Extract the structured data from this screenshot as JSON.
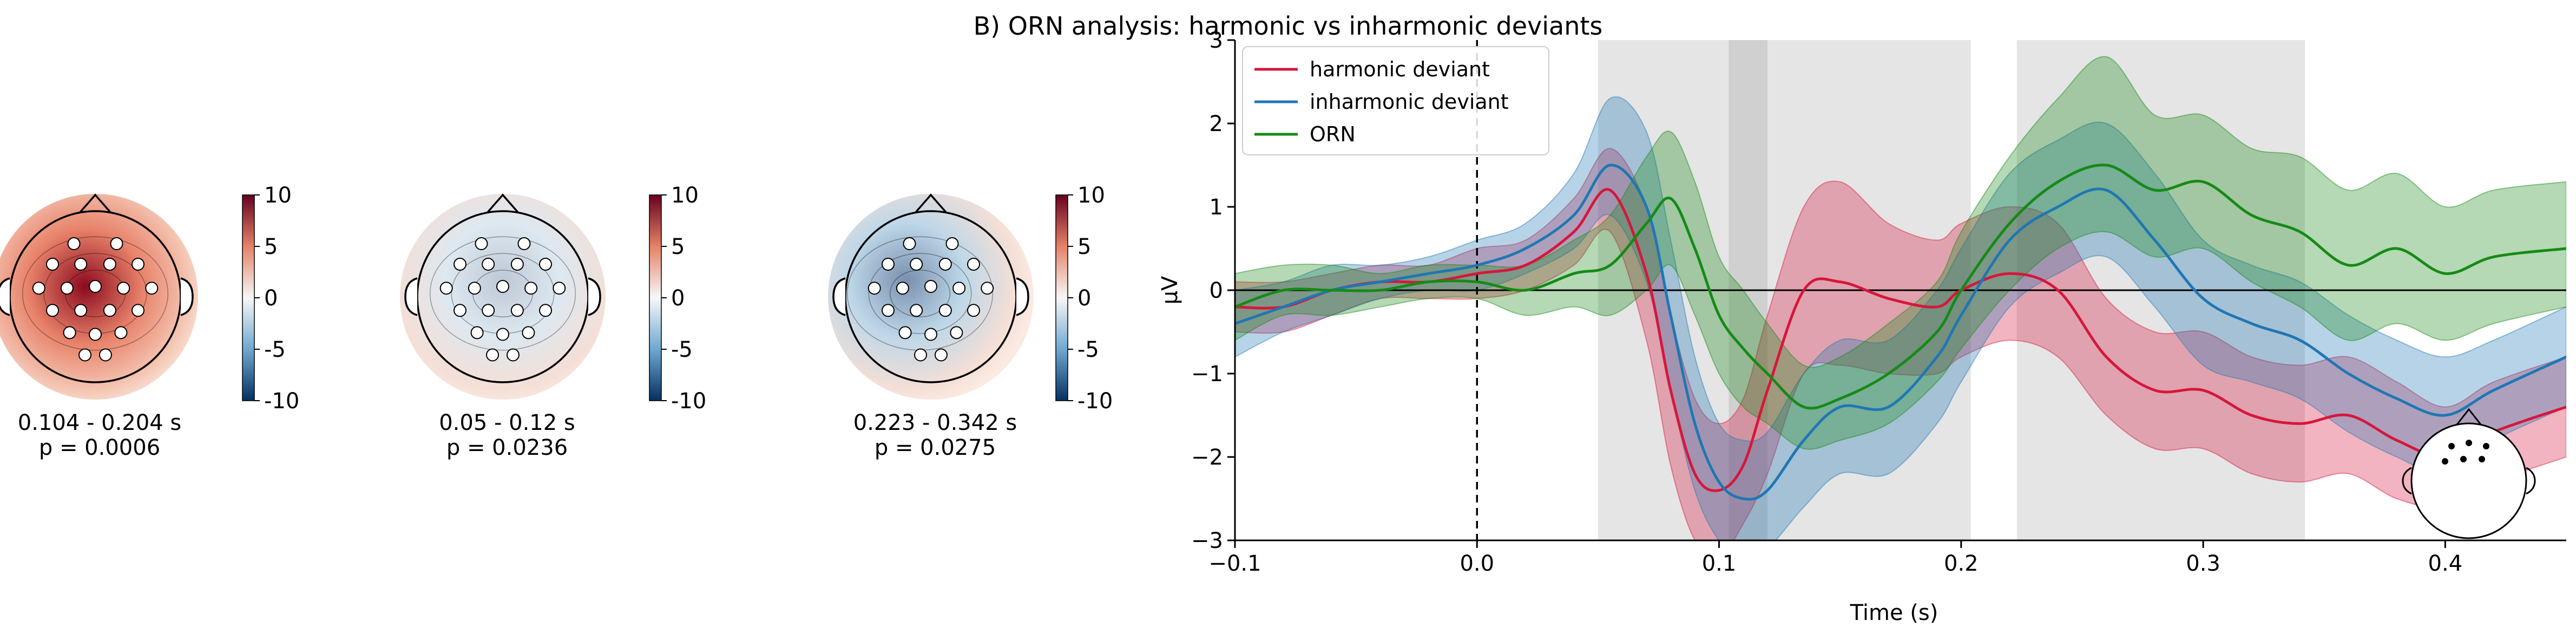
{
  "figure_title": "B) ORN analysis: harmonic vs inharmonic deviants",
  "colors": {
    "harmonic": "#d6173c",
    "inharmonic": "#1f77b4",
    "orn": "#168a16",
    "shade": "#d9d9d9",
    "shade_overlap": "#bdbdbd",
    "cmap_pos": "#8b0a1e",
    "cmap_neg": "#123c73"
  },
  "topomaps": [
    {
      "label_time": "0.104 - 0.204 s",
      "label_p": "p = 0.0006",
      "intensity": 1.0,
      "colorbar": {
        "ticks": [
          "10",
          "5",
          "0",
          "-5",
          "-10"
        ]
      }
    },
    {
      "label_time": "0.05 - 0.12 s",
      "label_p": "p = 0.0236",
      "intensity": -0.25,
      "colorbar": {
        "ticks": [
          "10",
          "5",
          "0",
          "-5",
          "-10"
        ]
      }
    },
    {
      "label_time": "0.223 - 0.342 s",
      "label_p": "p = 0.0275",
      "intensity": -0.55,
      "colorbar": {
        "ticks": [
          "10",
          "5",
          "0",
          "-5",
          "-10"
        ]
      }
    }
  ],
  "chart_data": {
    "type": "line",
    "title": "",
    "xlabel": "Time (s)",
    "ylabel": "µV",
    "xlim": [
      -0.1,
      0.45
    ],
    "ylim": [
      -3,
      3
    ],
    "xticks": [
      -0.1,
      0.0,
      0.1,
      0.2,
      0.3,
      0.4
    ],
    "xtick_labels": [
      "−0.1",
      "0.0",
      "0.1",
      "0.2",
      "0.3",
      "0.4"
    ],
    "yticks": [
      -3,
      -2,
      -1,
      0,
      1,
      2,
      3
    ],
    "ytick_labels": [
      "−3",
      "−2",
      "−1",
      "0",
      "1",
      "2",
      "3"
    ],
    "grid": false,
    "legend_position": "top-left",
    "shaded_windows": [
      [
        0.05,
        0.12
      ],
      [
        0.104,
        0.204
      ],
      [
        0.223,
        0.342
      ]
    ],
    "series": [
      {
        "name": "harmonic deviant",
        "color_key": "harmonic",
        "x": [
          -0.1,
          -0.08,
          -0.06,
          -0.04,
          -0.02,
          0.0,
          0.02,
          0.04,
          0.055,
          0.07,
          0.08,
          0.09,
          0.1,
          0.11,
          0.12,
          0.135,
          0.15,
          0.17,
          0.19,
          0.2,
          0.22,
          0.24,
          0.26,
          0.28,
          0.3,
          0.32,
          0.34,
          0.36,
          0.38,
          0.4,
          0.42,
          0.45
        ],
        "y": [
          -0.2,
          -0.2,
          0.0,
          0.1,
          0.1,
          0.2,
          0.3,
          0.7,
          1.2,
          0.2,
          -1.2,
          -2.2,
          -2.4,
          -2.1,
          -1.2,
          0.0,
          0.1,
          -0.1,
          -0.2,
          0.0,
          0.2,
          0.0,
          -0.8,
          -1.2,
          -1.2,
          -1.5,
          -1.6,
          -1.5,
          -1.8,
          -2.0,
          -1.7,
          -1.4
        ],
        "lo": [
          -0.5,
          -0.5,
          -0.3,
          -0.1,
          -0.1,
          -0.1,
          0.0,
          0.3,
          0.7,
          -0.6,
          -2.1,
          -3.0,
          -3.2,
          -2.8,
          -2.2,
          -1.0,
          -0.9,
          -1.0,
          -1.0,
          -0.8,
          -0.6,
          -0.8,
          -1.5,
          -1.9,
          -1.9,
          -2.2,
          -2.3,
          -2.2,
          -2.5,
          -2.6,
          -2.3,
          -2.0
        ],
        "hi": [
          0.1,
          0.1,
          0.2,
          0.3,
          0.3,
          0.5,
          0.6,
          1.1,
          1.7,
          1.0,
          -0.3,
          -1.3,
          -1.6,
          -1.3,
          -0.3,
          1.0,
          1.3,
          0.8,
          0.6,
          0.8,
          1.0,
          0.8,
          -0.1,
          -0.5,
          -0.5,
          -0.8,
          -0.9,
          -0.8,
          -1.1,
          -1.4,
          -1.1,
          -0.8
        ]
      },
      {
        "name": "inharmonic deviant",
        "color_key": "inharmonic",
        "x": [
          -0.1,
          -0.08,
          -0.06,
          -0.04,
          -0.02,
          0.0,
          0.02,
          0.04,
          0.055,
          0.07,
          0.08,
          0.09,
          0.1,
          0.11,
          0.12,
          0.135,
          0.15,
          0.17,
          0.19,
          0.2,
          0.22,
          0.24,
          0.26,
          0.28,
          0.3,
          0.32,
          0.34,
          0.36,
          0.38,
          0.4,
          0.42,
          0.45
        ],
        "y": [
          -0.4,
          -0.2,
          0.0,
          0.1,
          0.2,
          0.3,
          0.5,
          0.9,
          1.5,
          1.0,
          -0.3,
          -1.6,
          -2.3,
          -2.5,
          -2.4,
          -1.8,
          -1.4,
          -1.4,
          -0.8,
          -0.3,
          0.6,
          1.0,
          1.2,
          0.6,
          -0.1,
          -0.4,
          -0.6,
          -1.0,
          -1.3,
          -1.5,
          -1.2,
          -0.8
        ],
        "lo": [
          -0.8,
          -0.5,
          -0.3,
          -0.1,
          0.0,
          0.0,
          0.2,
          0.5,
          0.9,
          0.1,
          -1.2,
          -2.4,
          -3.0,
          -3.2,
          -3.1,
          -2.6,
          -2.2,
          -2.2,
          -1.6,
          -1.1,
          -0.2,
          0.2,
          0.4,
          -0.2,
          -0.9,
          -1.1,
          -1.3,
          -1.7,
          -2.0,
          -2.2,
          -1.8,
          -1.4
        ],
        "hi": [
          0.0,
          0.1,
          0.3,
          0.3,
          0.4,
          0.6,
          0.8,
          1.4,
          2.3,
          1.9,
          0.6,
          -0.8,
          -1.6,
          -1.8,
          -1.7,
          -1.0,
          -0.6,
          -0.6,
          0.0,
          0.5,
          1.4,
          1.8,
          2.0,
          1.4,
          0.6,
          0.3,
          0.1,
          -0.3,
          -0.6,
          -0.8,
          -0.6,
          -0.2
        ]
      },
      {
        "name": "ORN",
        "color_key": "orn",
        "x": [
          -0.1,
          -0.08,
          -0.06,
          -0.04,
          -0.02,
          0.0,
          0.02,
          0.04,
          0.055,
          0.07,
          0.08,
          0.09,
          0.1,
          0.11,
          0.12,
          0.135,
          0.15,
          0.17,
          0.19,
          0.2,
          0.22,
          0.24,
          0.26,
          0.28,
          0.3,
          0.32,
          0.34,
          0.36,
          0.38,
          0.4,
          0.42,
          0.45
        ],
        "y": [
          -0.2,
          0.0,
          0.0,
          0.0,
          0.1,
          0.1,
          0.0,
          0.2,
          0.3,
          0.8,
          1.1,
          0.5,
          -0.3,
          -0.7,
          -1.0,
          -1.4,
          -1.3,
          -1.0,
          -0.5,
          0.0,
          0.8,
          1.3,
          1.5,
          1.2,
          1.3,
          0.9,
          0.7,
          0.3,
          0.5,
          0.2,
          0.4,
          0.5
        ],
        "lo": [
          -0.6,
          -0.3,
          -0.3,
          -0.2,
          -0.1,
          -0.1,
          -0.3,
          -0.2,
          -0.3,
          0.0,
          0.3,
          -0.3,
          -1.0,
          -1.4,
          -1.6,
          -1.9,
          -1.8,
          -1.6,
          -1.1,
          -0.7,
          0.0,
          0.5,
          0.7,
          0.4,
          0.5,
          0.1,
          -0.2,
          -0.6,
          -0.4,
          -0.6,
          -0.4,
          -0.2
        ],
        "hi": [
          0.2,
          0.3,
          0.3,
          0.2,
          0.3,
          0.3,
          0.3,
          0.6,
          0.9,
          1.6,
          1.9,
          1.3,
          0.4,
          0.0,
          -0.4,
          -0.9,
          -0.8,
          -0.4,
          0.1,
          0.7,
          1.6,
          2.3,
          2.8,
          2.1,
          2.1,
          1.7,
          1.6,
          1.2,
          1.4,
          1.0,
          1.2,
          1.3
        ]
      }
    ]
  }
}
